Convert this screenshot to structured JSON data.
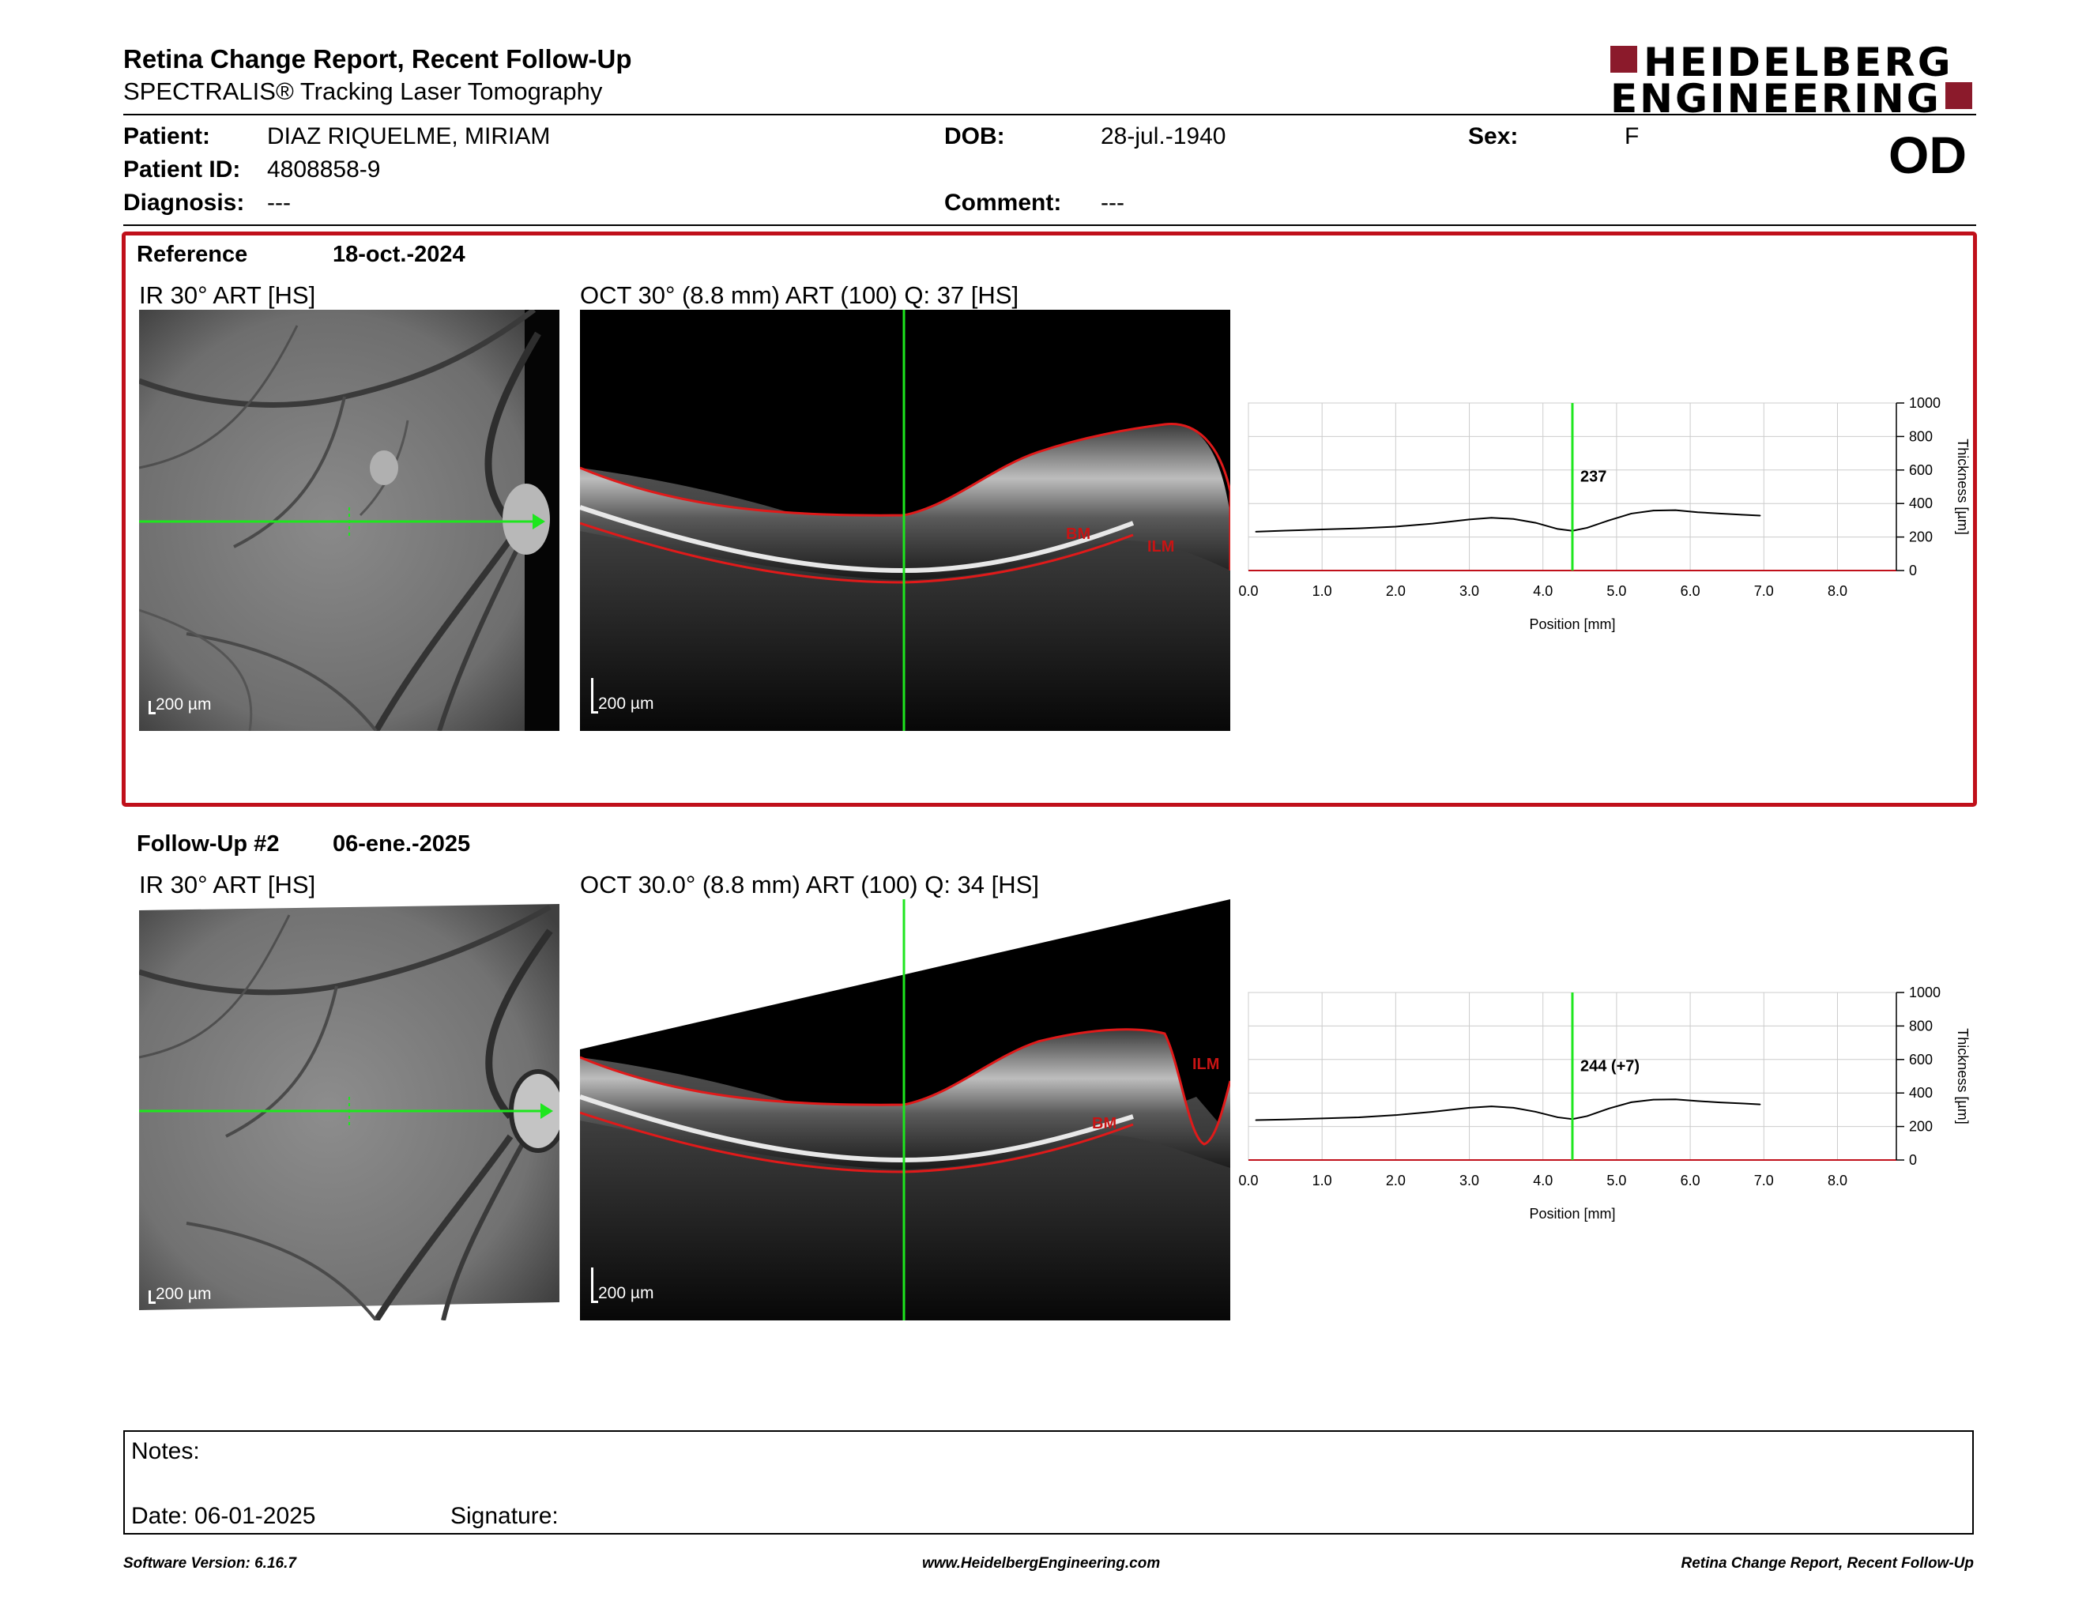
{
  "header": {
    "title": "Retina Change Report, Recent Follow-Up",
    "subtitle": "SPECTRALIS® Tracking Laser Tomography",
    "logo_line1": "HEIDELBERG",
    "logo_line2": "ENGINEERING",
    "eye": "OD"
  },
  "patient": {
    "patient_label": "Patient:",
    "patient_value": "DIAZ RIQUELME, MIRIAM",
    "id_label": "Patient ID:",
    "id_value": "4808858-9",
    "diagnosis_label": "Diagnosis:",
    "diagnosis_value": "---",
    "dob_label": "DOB:",
    "dob_value": "28-jul.-1940",
    "comment_label": "Comment:",
    "comment_value": "---",
    "sex_label": "Sex:",
    "sex_value": "F"
  },
  "reference": {
    "label": "Reference",
    "date": "18-oct.-2024",
    "ir_label": "IR 30° ART [HS]",
    "oct_label": "OCT 30° (8.8 mm) ART (100) Q: 37 [HS]",
    "scale_ir": "200 µm",
    "scale_oct": "200 µm",
    "bm_label": "BM",
    "ilm_label": "ILM"
  },
  "followup": {
    "label": "Follow-Up #2",
    "date": "06-ene.-2025",
    "ir_label": "IR 30° ART [HS]",
    "oct_label": "OCT 30.0° (8.8 mm) ART (100) Q: 34 [HS]",
    "scale_ir": "200 µm",
    "scale_oct": "200 µm",
    "bm_label": "BM",
    "ilm_label": "ILM"
  },
  "chart_data": [
    {
      "type": "line",
      "xlabel": "Position [mm]",
      "ylabel": "Thickness [µm]",
      "xlim": [
        0,
        8.8
      ],
      "ylim": [
        0,
        1000
      ],
      "x_ticks": [
        "0.0",
        "1.0",
        "2.0",
        "3.0",
        "4.0",
        "5.0",
        "6.0",
        "7.0",
        "8.0"
      ],
      "y_ticks": [
        "0",
        "200",
        "400",
        "600",
        "800",
        "1000"
      ],
      "grid": true,
      "cursor_x": 4.4,
      "cursor_label": "237",
      "x": [
        0.1,
        0.5,
        1.0,
        1.5,
        2.0,
        2.5,
        3.0,
        3.3,
        3.6,
        3.9,
        4.2,
        4.4,
        4.6,
        4.9,
        5.2,
        5.5,
        5.8,
        6.1,
        6.4,
        6.7,
        6.95
      ],
      "values": [
        232,
        238,
        245,
        252,
        262,
        280,
        305,
        315,
        308,
        285,
        248,
        237,
        255,
        300,
        340,
        358,
        360,
        348,
        340,
        333,
        328
      ]
    },
    {
      "type": "line",
      "xlabel": "Position [mm]",
      "ylabel": "Thickness [µm]",
      "xlim": [
        0,
        8.8
      ],
      "ylim": [
        0,
        1000
      ],
      "x_ticks": [
        "0.0",
        "1.0",
        "2.0",
        "3.0",
        "4.0",
        "5.0",
        "6.0",
        "7.0",
        "8.0"
      ],
      "y_ticks": [
        "0",
        "200",
        "400",
        "600",
        "800",
        "1000"
      ],
      "grid": true,
      "cursor_x": 4.4,
      "cursor_label": "244 (+7)",
      "x": [
        0.1,
        0.5,
        1.0,
        1.5,
        2.0,
        2.5,
        3.0,
        3.3,
        3.6,
        3.9,
        4.2,
        4.4,
        4.6,
        4.9,
        5.2,
        5.5,
        5.8,
        6.1,
        6.4,
        6.7,
        6.95
      ],
      "values": [
        238,
        242,
        248,
        255,
        268,
        288,
        312,
        320,
        312,
        288,
        255,
        244,
        262,
        308,
        345,
        360,
        362,
        352,
        344,
        338,
        332
      ]
    }
  ],
  "notes": {
    "notes_label": "Notes:",
    "date_label": "Date: 06-01-2025",
    "signature_label": "Signature:"
  },
  "footer": {
    "software": "Software Version: 6.16.7",
    "url": "www.HeidelbergEngineering.com",
    "report": "Retina Change Report, Recent Follow-Up"
  }
}
